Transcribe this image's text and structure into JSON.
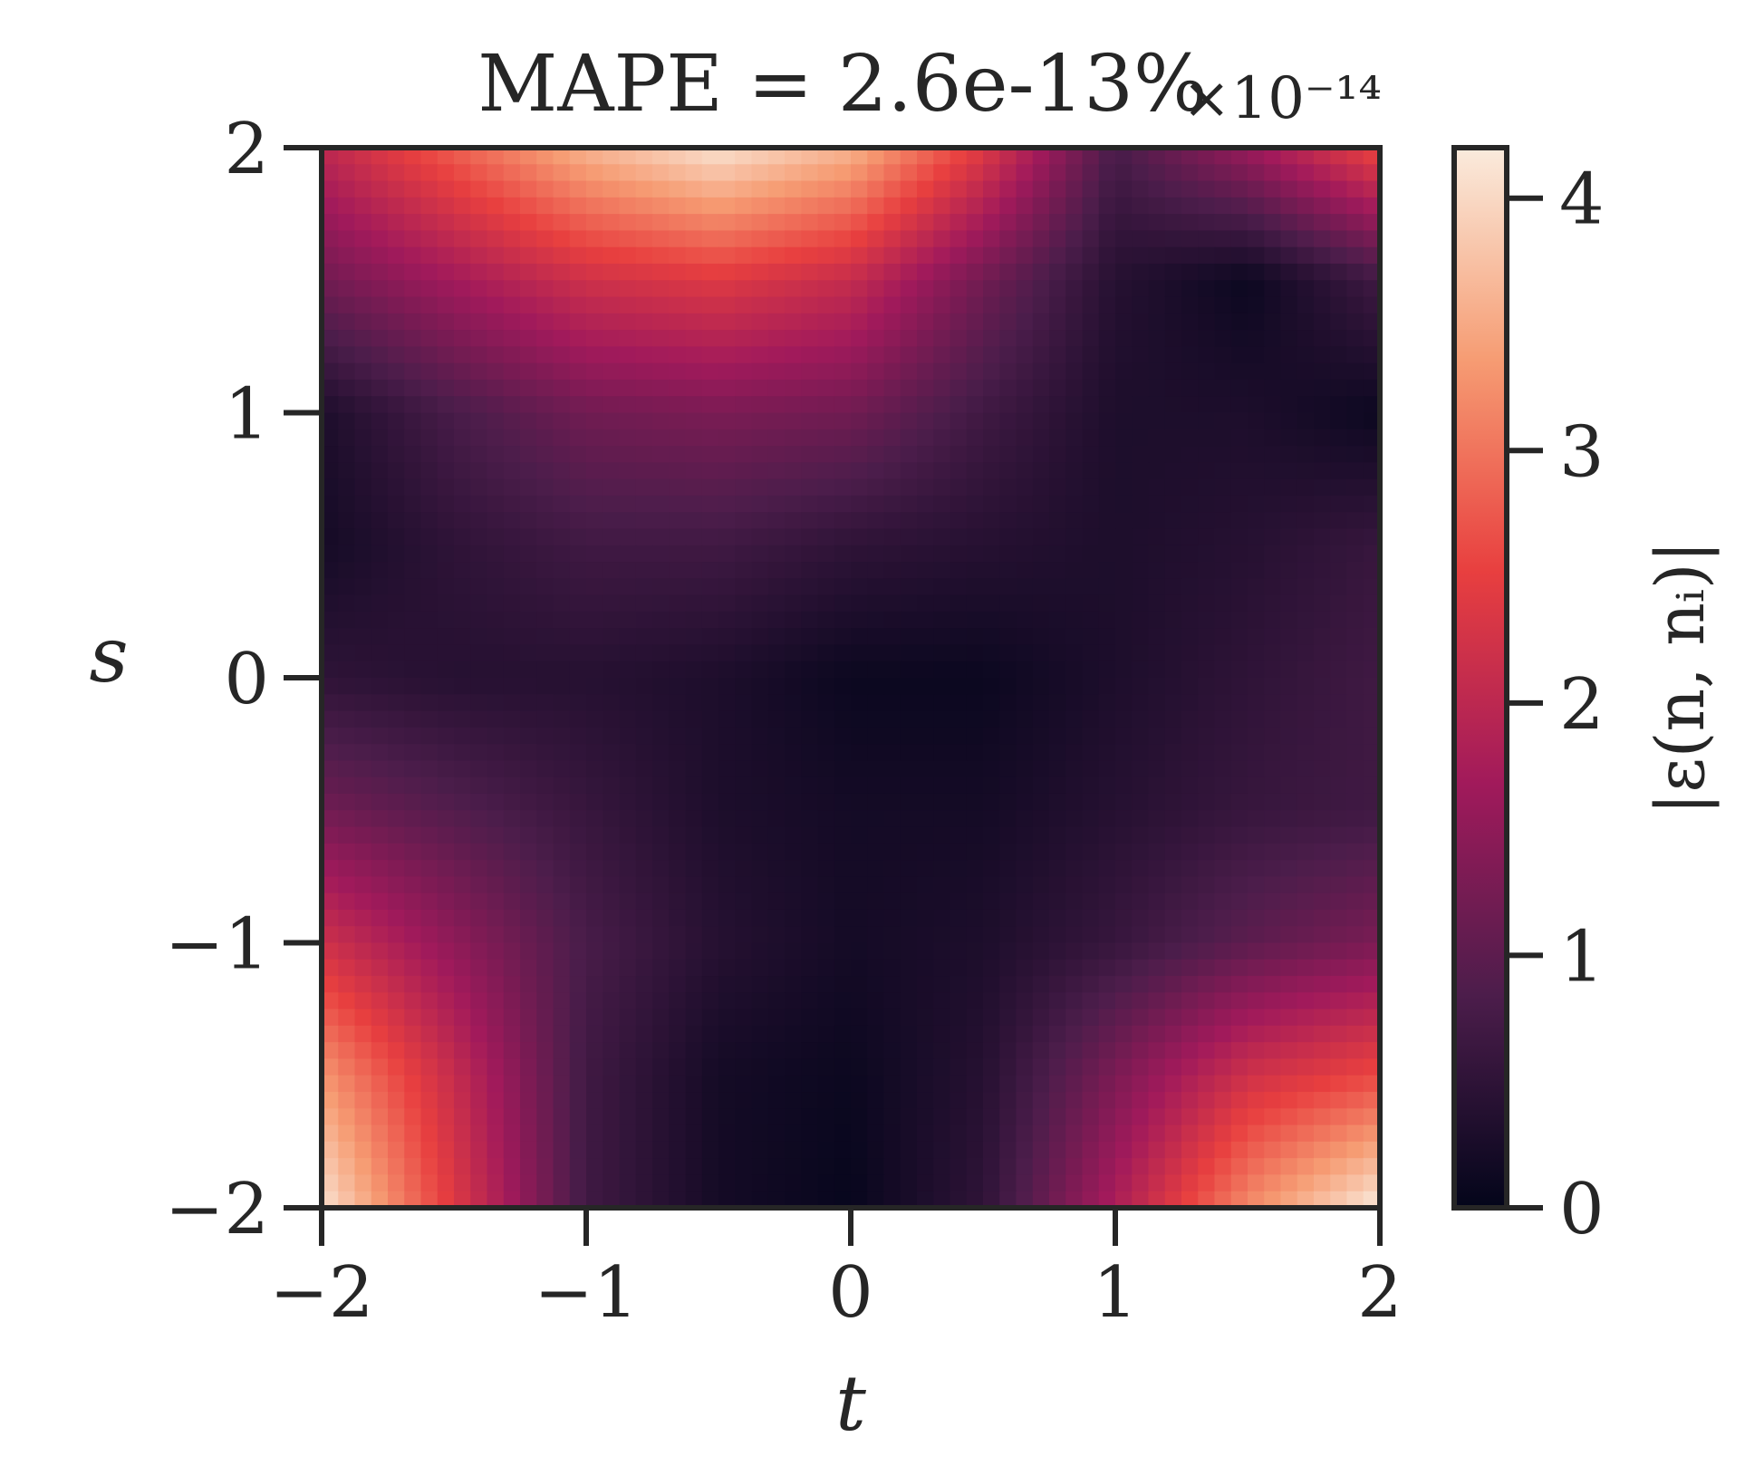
{
  "chart_data": {
    "type": "heatmap",
    "title": "MAPE = 2.6e-13%",
    "xlabel": "t",
    "ylabel": "s",
    "xlim": [
      -2,
      2
    ],
    "ylim": [
      -2,
      2
    ],
    "x_ticks": [
      -2,
      -1,
      0,
      1,
      2
    ],
    "y_ticks": [
      -2,
      -1,
      0,
      1,
      2
    ],
    "x_tick_labels": [
      "−2",
      "−1",
      "0",
      "1",
      "2"
    ],
    "y_tick_labels": [
      "−2",
      "−1",
      "0",
      "1",
      "2"
    ],
    "colorbar": {
      "label": "|ε(n, nᵢ)|",
      "multiplier": "×10⁻¹⁴",
      "range": [
        0,
        4.2
      ],
      "ticks": [
        0,
        1,
        2,
        3,
        4
      ],
      "tick_labels": [
        "0",
        "1",
        "2",
        "3",
        "4"
      ],
      "colormap": "rocket",
      "colormap_stops": [
        "#03051a",
        "#4c1d4b",
        "#a11a5b",
        "#e83f3f",
        "#f69c73",
        "#faebdd"
      ]
    },
    "grid": false,
    "z_samples": {
      "t": [
        -2,
        -1.5,
        -1,
        -0.5,
        0,
        0.5,
        1,
        1.5,
        2
      ],
      "s": [
        2,
        1.5,
        1,
        0.5,
        0,
        -0.5,
        -1,
        -1.5,
        -2
      ],
      "values": [
        [
          2.0,
          2.8,
          3.6,
          4.1,
          3.6,
          2.4,
          0.8,
          1.6,
          2.6
        ],
        [
          1.2,
          1.7,
          2.2,
          2.4,
          2.1,
          1.2,
          0.4,
          0.1,
          0.7
        ],
        [
          0.3,
          0.8,
          1.2,
          1.3,
          1.2,
          0.7,
          0.3,
          0.3,
          0.1
        ],
        [
          0.2,
          0.5,
          0.7,
          0.7,
          0.5,
          0.4,
          0.3,
          0.4,
          0.6
        ],
        [
          0.5,
          0.4,
          0.4,
          0.3,
          0.1,
          0.1,
          0.3,
          0.5,
          0.7
        ],
        [
          1.2,
          0.9,
          0.6,
          0.3,
          0.2,
          0.2,
          0.4,
          0.6,
          0.7
        ],
        [
          2.2,
          1.5,
          0.8,
          0.4,
          0.2,
          0.3,
          0.6,
          1.0,
          1.3
        ],
        [
          3.3,
          2.1,
          0.7,
          0.2,
          0.1,
          0.4,
          1.3,
          2.2,
          2.6
        ],
        [
          4.1,
          2.4,
          0.7,
          0.2,
          0.05,
          0.5,
          1.8,
          3.2,
          4.2
        ]
      ]
    }
  }
}
